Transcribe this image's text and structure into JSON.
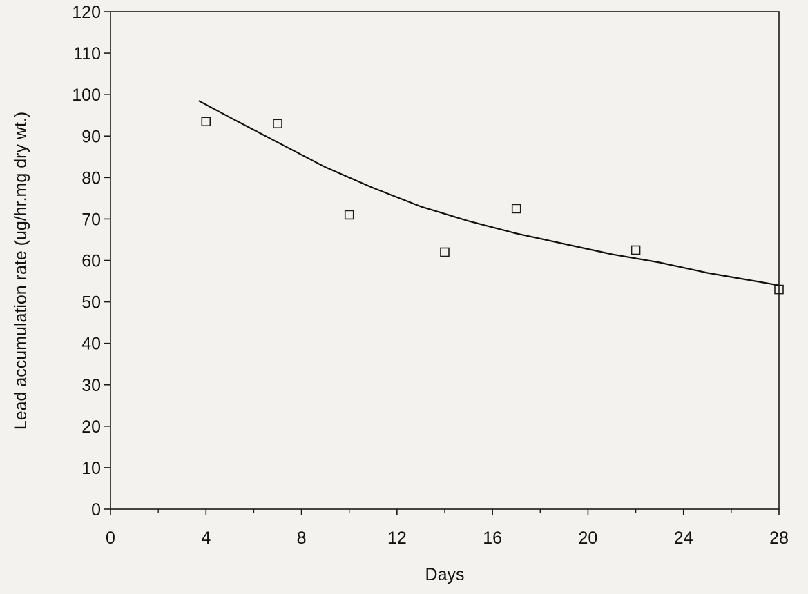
{
  "chart_data": {
    "type": "scatter",
    "title": "",
    "xlabel": "Days",
    "ylabel": "Lead accumulation rate (ug/hr.mg dry wt.)",
    "xlim": [
      0,
      28
    ],
    "ylim": [
      0,
      120
    ],
    "x_ticks_major": [
      0,
      4,
      8,
      12,
      16,
      20,
      24,
      28
    ],
    "x_tick_labels": [
      "0",
      "4",
      "8",
      "12",
      "16",
      "20",
      "24",
      "28"
    ],
    "x_ticks_minor": [
      2,
      6,
      10,
      14,
      18,
      22,
      26
    ],
    "y_ticks": [
      0,
      10,
      20,
      30,
      40,
      50,
      60,
      70,
      80,
      90,
      100,
      110,
      120
    ],
    "y_tick_labels": [
      "0",
      "10",
      "20",
      "30",
      "40",
      "50",
      "60",
      "70",
      "80",
      "90",
      "100",
      "110",
      "120"
    ],
    "grid": false,
    "series": [
      {
        "marker": "open-square",
        "x": [
          4,
          7,
          10,
          14,
          17,
          22,
          28
        ],
        "y": [
          93.5,
          93,
          71,
          62,
          72.5,
          62.5,
          53
        ]
      }
    ],
    "fit_curve": {
      "style": "solid-line",
      "x": [
        3.7,
        5,
        7,
        9,
        11,
        13,
        15,
        17,
        19,
        21,
        23,
        25,
        27,
        28
      ],
      "y": [
        98.5,
        94.5,
        88.5,
        82.5,
        77.5,
        73,
        69.5,
        66.5,
        64,
        61.5,
        59.5,
        57,
        55,
        54
      ]
    },
    "colors": {
      "axes": "#1a1a1a",
      "marker": "#1a1a1a",
      "line": "#111111",
      "background": "#f4f2ee"
    }
  }
}
